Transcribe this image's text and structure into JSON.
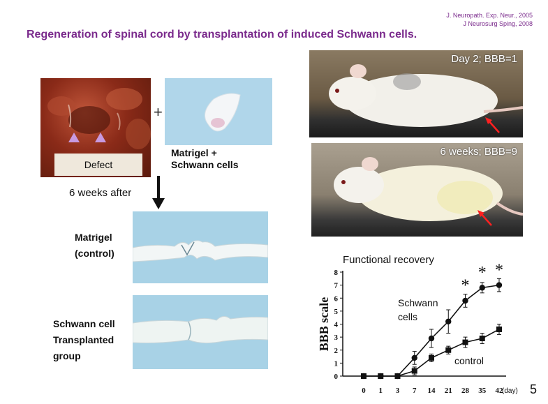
{
  "references": [
    "J. Neuropath. Exp. Neur., 2005",
    "J Neurosurg Sping, 2008"
  ],
  "title": "Regeneration of spinal cord by transplantation of induced Schwann cells.",
  "panels": {
    "defect_label": "Defect",
    "plus": "+",
    "matrigel_line1": "Matrigel +",
    "matrigel_line2": "Schwann cells",
    "six_weeks_after": "6 weeks after",
    "matrigel_control_line1": "Matrigel",
    "matrigel_control_line2": "(control)",
    "schwann_group_line1": "Schwann cell",
    "schwann_group_line2": "Transplanted",
    "schwann_group_line3": "group",
    "rat_day2": "Day 2;    BBB=1",
    "rat_6weeks": "6 weeks;    BBB=9"
  },
  "chart_data": {
    "type": "line",
    "title": "Functional recovery",
    "xlabel": "(day)",
    "ylabel": "BBB scale",
    "x": [
      0,
      1,
      3,
      7,
      14,
      21,
      28,
      35,
      42
    ],
    "ylim": [
      0,
      8
    ],
    "yticks": [
      0,
      1,
      2,
      3,
      4,
      5,
      6,
      7,
      8
    ],
    "series": [
      {
        "name": "Schwann cells",
        "label_lines": [
          "Schwann",
          "cells"
        ],
        "marker": "circle",
        "values": [
          0,
          0,
          0,
          1.4,
          2.9,
          4.2,
          5.8,
          6.8,
          7.0
        ],
        "errors": [
          0,
          0,
          0,
          0.5,
          0.7,
          0.9,
          0.5,
          0.4,
          0.5
        ]
      },
      {
        "name": "control",
        "label_lines": [
          "control"
        ],
        "marker": "square",
        "values": [
          0,
          0,
          0,
          0.4,
          1.4,
          2.0,
          2.6,
          2.9,
          3.6
        ],
        "errors": [
          0,
          0,
          0,
          0.3,
          0.3,
          0.3,
          0.4,
          0.4,
          0.4
        ]
      }
    ],
    "significance": [
      {
        "x": 28,
        "symbol": "*"
      },
      {
        "x": 35,
        "symbol": "*"
      },
      {
        "x": 42,
        "symbol": "*"
      }
    ]
  },
  "page_number": "5",
  "colors": {
    "title": "#7a2a8c",
    "gel_blue": "#a8d2e6",
    "tissue_red": "#8a2a18"
  }
}
